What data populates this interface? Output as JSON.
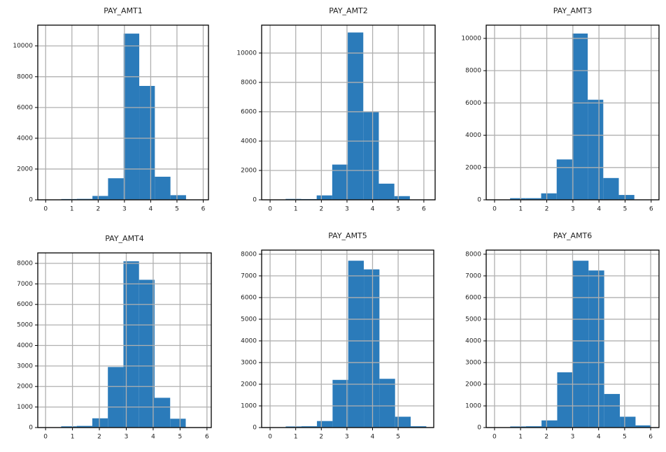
{
  "chart_data": [
    {
      "type": "histogram",
      "title": "PAY_AMT1",
      "color": "#2b7bba",
      "grid": true,
      "bins": [
        0,
        0.594,
        1.188,
        1.782,
        2.376,
        2.97,
        3.564,
        4.158,
        4.752,
        5.346,
        5.94
      ],
      "counts": [
        10,
        50,
        60,
        250,
        1400,
        10800,
        7400,
        1500,
        300,
        5
      ],
      "xlim": [
        -0.3,
        6.2
      ],
      "ylim": [
        0,
        11350
      ],
      "xticks": [
        0,
        1,
        2,
        3,
        4,
        5,
        6
      ],
      "yticks": [
        0,
        2000,
        4000,
        6000,
        8000,
        10000
      ]
    },
    {
      "type": "histogram",
      "title": "PAY_AMT2",
      "color": "#2b7bba",
      "grid": true,
      "bins": [
        0,
        0.606,
        1.212,
        1.818,
        2.424,
        3.03,
        3.636,
        4.242,
        4.848,
        5.454,
        6.06
      ],
      "counts": [
        5,
        60,
        50,
        300,
        2400,
        11400,
        6000,
        1100,
        250,
        3
      ],
      "xlim": [
        -0.33,
        6.44
      ],
      "ylim": [
        0,
        11900
      ],
      "xticks": [
        0,
        1,
        2,
        3,
        4,
        5,
        6
      ],
      "yticks": [
        0,
        2000,
        4000,
        6000,
        8000,
        10000
      ]
    },
    {
      "type": "histogram",
      "title": "PAY_AMT3",
      "color": "#2b7bba",
      "grid": true,
      "bins": [
        0,
        0.595,
        1.19,
        1.785,
        2.38,
        2.975,
        3.57,
        4.165,
        4.76,
        5.355,
        5.95
      ],
      "counts": [
        5,
        100,
        100,
        400,
        2500,
        10300,
        6200,
        1350,
        300,
        5
      ],
      "xlim": [
        -0.32,
        6.3
      ],
      "ylim": [
        0,
        10820
      ],
      "xticks": [
        0,
        1,
        2,
        3,
        4,
        5,
        6
      ],
      "yticks": [
        0,
        2000,
        4000,
        6000,
        8000,
        10000
      ]
    },
    {
      "type": "histogram",
      "title": "PAY_AMT4",
      "color": "#2b7bba",
      "grid": true,
      "bins": [
        0,
        0.579,
        1.158,
        1.737,
        2.316,
        2.895,
        3.474,
        4.053,
        4.632,
        5.211,
        5.79
      ],
      "counts": [
        5,
        60,
        80,
        450,
        2950,
        8100,
        7200,
        1450,
        430,
        10
      ],
      "xlim": [
        -0.29,
        6.16
      ],
      "ylim": [
        0,
        8510
      ],
      "xticks": [
        0,
        1,
        2,
        3,
        4,
        5,
        6
      ],
      "yticks": [
        0,
        1000,
        2000,
        3000,
        4000,
        5000,
        6000,
        7000,
        8000
      ]
    },
    {
      "type": "histogram",
      "title": "PAY_AMT5",
      "color": "#2b7bba",
      "grid": true,
      "bins": [
        0,
        0.61,
        1.22,
        1.83,
        2.44,
        3.05,
        3.66,
        4.27,
        4.88,
        5.49,
        6.1
      ],
      "counts": [
        10,
        50,
        60,
        300,
        2200,
        7700,
        7300,
        2250,
        500,
        60
      ],
      "xlim": [
        -0.33,
        6.39
      ],
      "ylim": [
        0,
        8190
      ],
      "xticks": [
        0,
        1,
        2,
        3,
        4,
        5
      ],
      "yticks": [
        0,
        1000,
        2000,
        3000,
        4000,
        5000,
        6000,
        7000,
        8000
      ]
    },
    {
      "type": "histogram",
      "title": "PAY_AMT6",
      "color": "#2b7bba",
      "grid": true,
      "bins": [
        0,
        0.602,
        1.204,
        1.806,
        2.408,
        3.01,
        3.612,
        4.214,
        4.816,
        5.418,
        6.02
      ],
      "counts": [
        10,
        50,
        60,
        330,
        2550,
        7700,
        7250,
        1550,
        500,
        100
      ],
      "xlim": [
        -0.32,
        6.32
      ],
      "ylim": [
        0,
        8190
      ],
      "xticks": [
        0,
        1,
        2,
        3,
        4,
        5,
        6
      ],
      "yticks": [
        0,
        1000,
        2000,
        3000,
        4000,
        5000,
        6000,
        7000,
        8000
      ]
    }
  ]
}
